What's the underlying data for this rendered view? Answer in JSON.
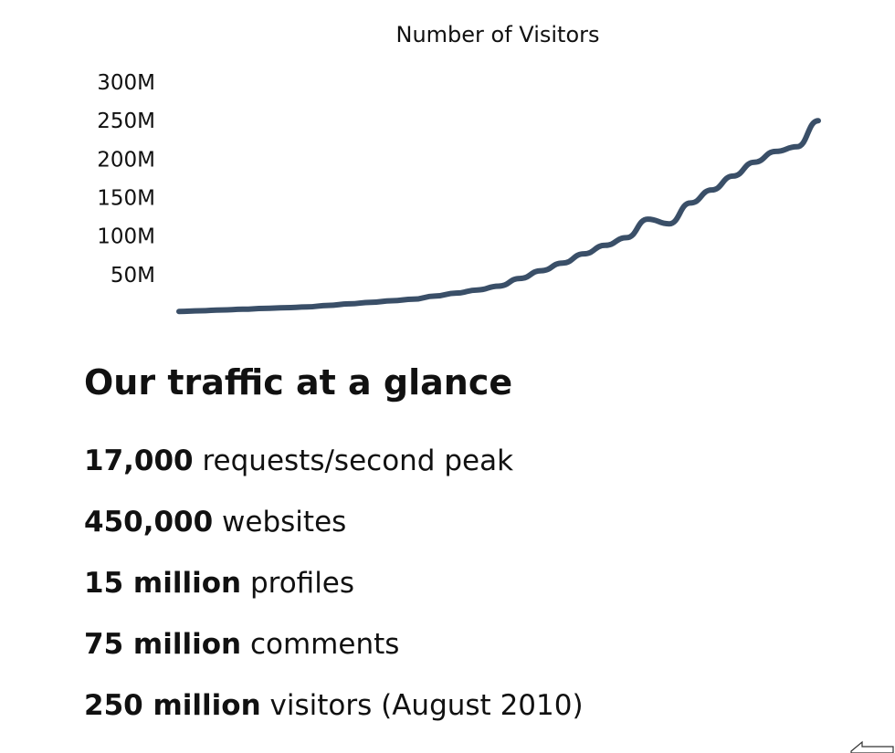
{
  "chart_data": {
    "type": "line",
    "title": "Number of Visitors",
    "xlabel": "",
    "ylabel": "",
    "y_ticks": [
      "50M",
      "100M",
      "150M",
      "200M",
      "250M",
      "300M"
    ],
    "y_tick_values": [
      50000000,
      100000000,
      150000000,
      200000000,
      250000000,
      300000000
    ],
    "ylim": [
      0,
      300000000
    ],
    "grid": false,
    "legend": "none",
    "series": [
      {
        "color": "#3a4f68",
        "values": [
          2000000,
          3000000,
          4000000,
          5000000,
          6000000,
          7000000,
          8000000,
          10000000,
          12000000,
          14000000,
          16000000,
          18000000,
          22000000,
          26000000,
          30000000,
          35000000,
          45000000,
          55000000,
          65000000,
          77000000,
          88000000,
          98000000,
          122000000,
          116000000,
          143000000,
          160000000,
          178000000,
          196000000,
          210000000,
          216000000,
          250000000
        ]
      }
    ]
  },
  "traffic": {
    "heading": "Our traffic at a glance",
    "stats": [
      {
        "value": "17,000",
        "desc": " requests/second peak"
      },
      {
        "value": "450,000",
        "desc": " websites"
      },
      {
        "value": "15 million",
        "desc": " profiles"
      },
      {
        "value": "75 million",
        "desc": " comments"
      },
      {
        "value": "250 million",
        "desc": " visitors (August 2010)"
      }
    ]
  },
  "icons": {
    "corner": "cursor-arrow-icon"
  }
}
